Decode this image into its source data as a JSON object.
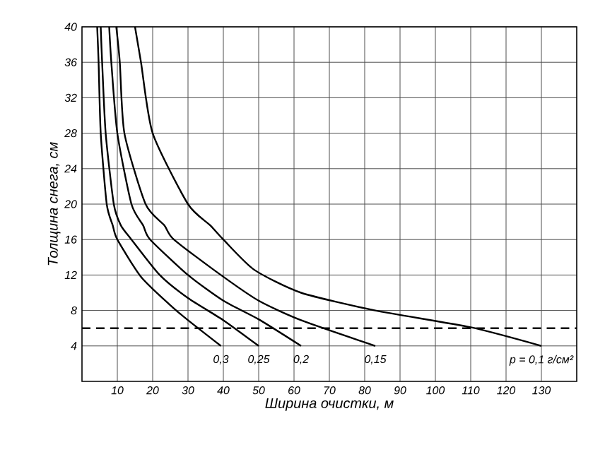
{
  "chart_data": {
    "type": "line",
    "xlabel": "Ширина очистки, м",
    "ylabel": "Толщина снега, см",
    "xlim": [
      0,
      140
    ],
    "xticks": [
      10,
      20,
      30,
      40,
      50,
      60,
      70,
      80,
      90,
      100,
      110,
      120,
      130
    ],
    "ylim": [
      0,
      40
    ],
    "yticks": [
      4,
      8,
      12,
      16,
      20,
      24,
      28,
      32,
      36,
      40
    ],
    "grid": true,
    "marker": "none",
    "color": "#000000",
    "series": [
      {
        "name": "0,3",
        "x": [
          4.3,
          4.7,
          5.3,
          7,
          8.7,
          10,
          16.7,
          24.7,
          30,
          39.3
        ],
        "values": [
          40,
          36,
          28,
          20,
          17.6,
          16,
          11.8,
          8.7,
          6.9,
          4
        ]
      },
      {
        "name": "0,25",
        "x": [
          5.3,
          5.7,
          6.7,
          9,
          11,
          14,
          22,
          30,
          40,
          50
        ],
        "values": [
          40,
          36,
          28,
          20,
          17.6,
          16,
          12,
          9.4,
          6.9,
          4
        ]
      },
      {
        "name": "0,2",
        "x": [
          7.7,
          8.3,
          10,
          14,
          17.3,
          19.3,
          30,
          40,
          50,
          62
        ],
        "values": [
          40,
          36,
          28,
          20,
          17.6,
          16,
          12,
          9.1,
          7,
          4
        ]
      },
      {
        "name": "0,15",
        "x": [
          9.7,
          10.7,
          12,
          18,
          23.3,
          26,
          39.3,
          50,
          62,
          83
        ],
        "values": [
          40,
          36,
          28,
          20,
          17.6,
          16,
          12,
          9.1,
          6.9,
          4
        ]
      },
      {
        "name": "р = 0,1 г/см²",
        "x": [
          15,
          16.7,
          20,
          30,
          36.3,
          40,
          48.7,
          62,
          83,
          110,
          130
        ],
        "values": [
          40,
          36,
          28,
          20,
          17.6,
          16,
          12.6,
          10,
          8,
          6.1,
          4
        ]
      }
    ],
    "ref_lines": [
      {
        "axis": "y",
        "value": 6,
        "line_style": "dashed"
      }
    ]
  }
}
